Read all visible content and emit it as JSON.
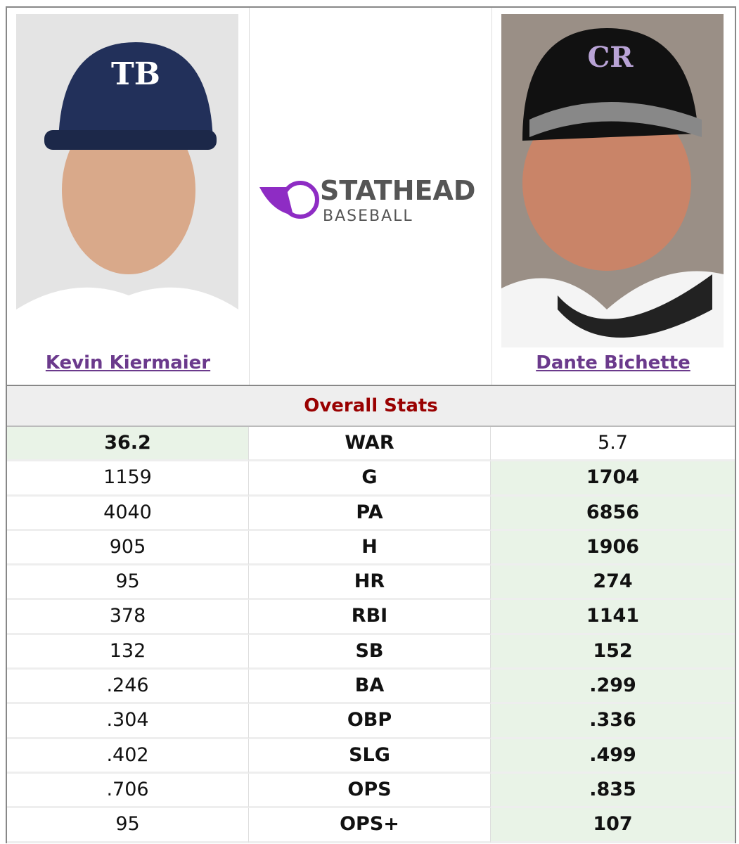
{
  "players": [
    {
      "name": "Kevin Kiermaier"
    },
    {
      "name": "Dante Bichette"
    }
  ],
  "logo": {
    "brand": "STATHEAD",
    "sport": "BASEBALL"
  },
  "section_title": "Overall Stats",
  "table": {
    "rows": [
      {
        "left": "36.2",
        "stat": "WAR",
        "right": "5.7",
        "highlight": "left"
      },
      {
        "left": "1159",
        "stat": "G",
        "right": "1704",
        "highlight": "right"
      },
      {
        "left": "4040",
        "stat": "PA",
        "right": "6856",
        "highlight": "right"
      },
      {
        "left": "905",
        "stat": "H",
        "right": "1906",
        "highlight": "right"
      },
      {
        "left": "95",
        "stat": "HR",
        "right": "274",
        "highlight": "right"
      },
      {
        "left": "378",
        "stat": "RBI",
        "right": "1141",
        "highlight": "right"
      },
      {
        "left": "132",
        "stat": "SB",
        "right": "152",
        "highlight": "right"
      },
      {
        "left": ".246",
        "stat": "BA",
        "right": ".299",
        "highlight": "right"
      },
      {
        "left": ".304",
        "stat": "OBP",
        "right": ".336",
        "highlight": "right"
      },
      {
        "left": ".402",
        "stat": "SLG",
        "right": ".499",
        "highlight": "right"
      },
      {
        "left": ".706",
        "stat": "OPS",
        "right": ".835",
        "highlight": "right"
      },
      {
        "left": "95",
        "stat": "OPS+",
        "right": "107",
        "highlight": "right"
      }
    ]
  }
}
